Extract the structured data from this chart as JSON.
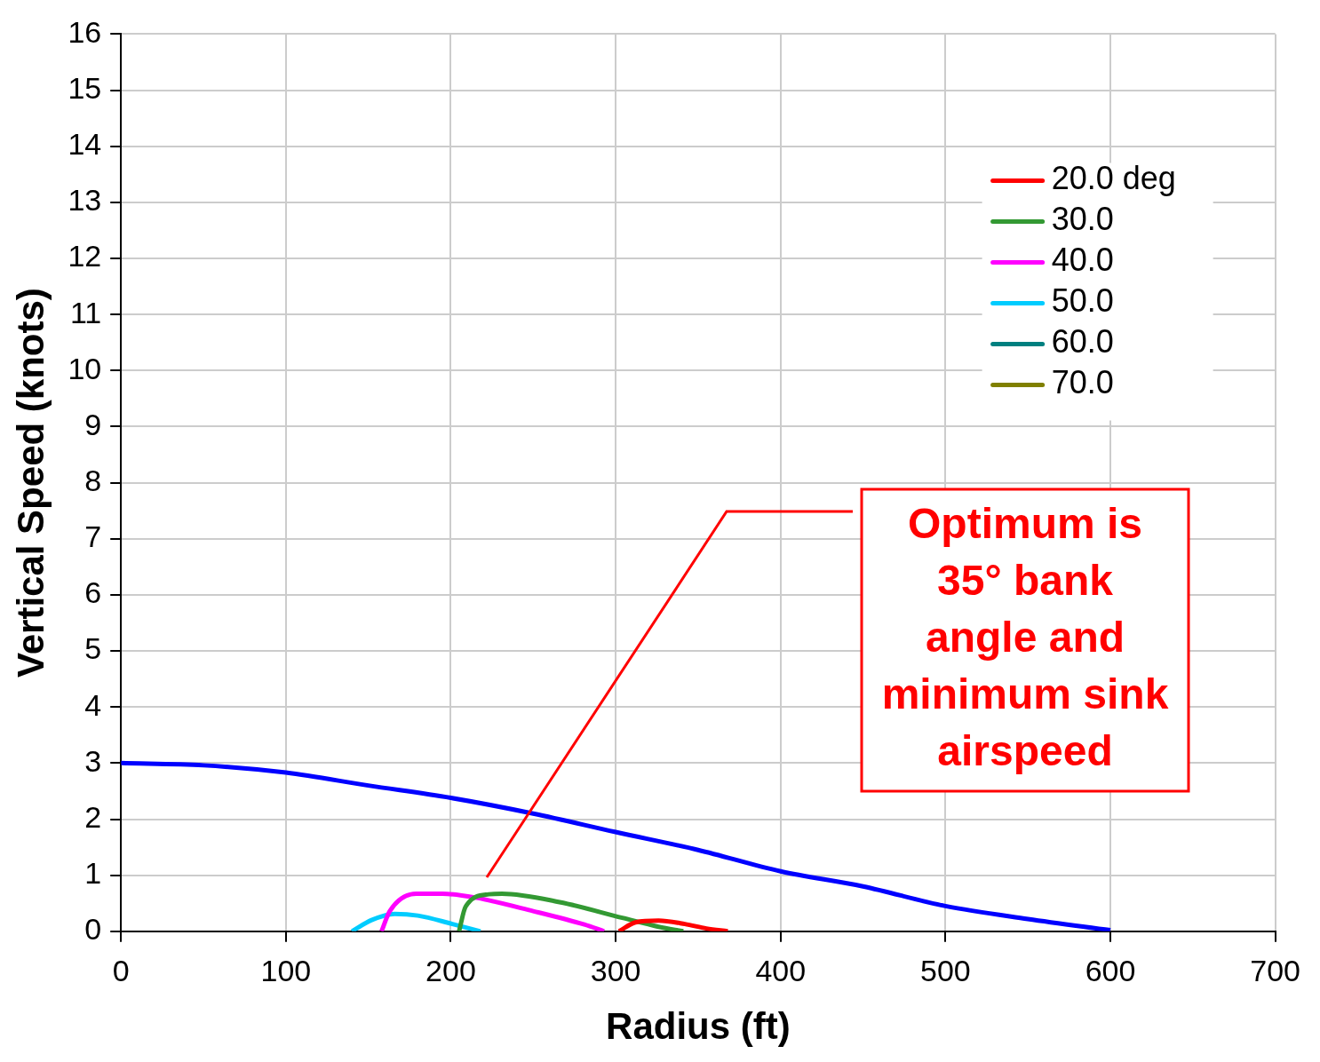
{
  "chart_data": {
    "type": "line",
    "xlabel": "Radius (ft)",
    "ylabel": "Vertical Speed (knots)",
    "xlim": [
      0,
      700
    ],
    "xticks": [
      0,
      100,
      200,
      300,
      400,
      500,
      600,
      700
    ],
    "ylim": [
      0,
      16
    ],
    "yticks": [
      0,
      1,
      2,
      3,
      4,
      5,
      6,
      7,
      8,
      9,
      10,
      11,
      12,
      13,
      14,
      15,
      16
    ],
    "grid": true,
    "legend": "top right",
    "marker": "none",
    "line_style": "solid",
    "annotations": [
      "Optimum is 35° bank angle and minimum sink airspeed"
    ],
    "series": [
      {
        "color": "#0000ff",
        "x": [
          0,
          50,
          100,
          150,
          200,
          250,
          300,
          350,
          400,
          450,
          500,
          550,
          600
        ],
        "values": [
          3.0,
          2.96,
          2.83,
          2.6,
          2.38,
          2.1,
          1.77,
          1.45,
          1.07,
          0.8,
          0.45,
          0.22,
          0.02
        ]
      },
      {
        "name": "20.0 deg",
        "color": "#ff0000",
        "x": [
          302,
          312,
          326,
          342,
          355,
          368
        ],
        "values": [
          0,
          0.16,
          0.19,
          0.13,
          0.05,
          0
        ]
      },
      {
        "name": "30.0",
        "color": "#339933",
        "x": [
          205,
          209,
          223,
          231,
          266,
          304,
          326,
          341
        ],
        "values": [
          0,
          0.44,
          0.66,
          0.67,
          0.52,
          0.24,
          0.08,
          0
        ]
      },
      {
        "name": "40.0",
        "color": "#ff00ff",
        "x": [
          158,
          163,
          179,
          195,
          215,
          250,
          281,
          293
        ],
        "values": [
          0,
          0.36,
          0.67,
          0.67,
          0.6,
          0.36,
          0.12,
          0
        ]
      },
      {
        "name": "50.0",
        "color": "#00ccff",
        "x": [
          140,
          152,
          166,
          180,
          201,
          218
        ],
        "values": [
          0,
          0.2,
          0.31,
          0.28,
          0.13,
          0
        ]
      },
      {
        "name": "60.0",
        "color": "#008080"
      },
      {
        "name": "70.0",
        "color": "#808000"
      }
    ]
  }
}
